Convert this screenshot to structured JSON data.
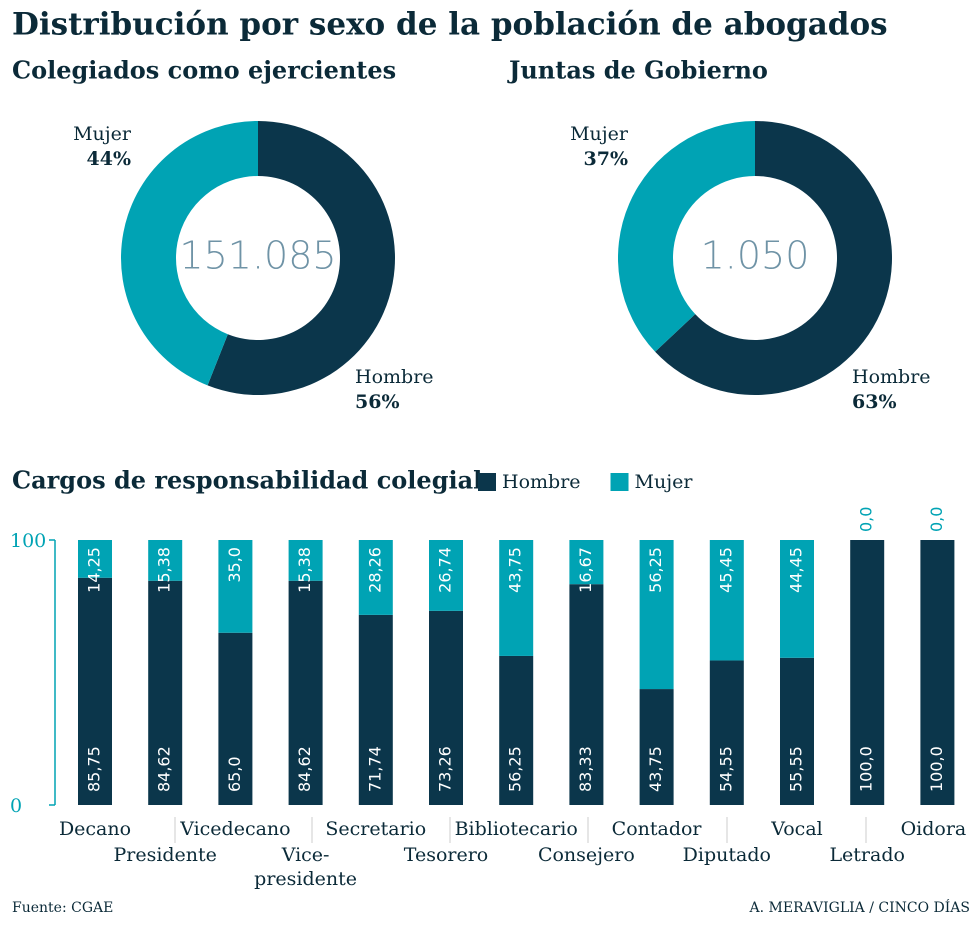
{
  "title": "Distribución por sexo de la población de abogados",
  "source": "Fuente: CGAE",
  "credit": "A. MERAVIGLIA / CINCO DÍAS",
  "chart_data": [
    {
      "type": "donut",
      "title": "Colegiados como ejercientes",
      "center_text": "151.085",
      "categories": [
        "Hombre",
        "Mujer"
      ],
      "values": [
        56,
        44
      ],
      "value_labels": [
        "56%",
        "44%"
      ],
      "colors": [
        "#0b364b",
        "#00a3b4"
      ]
    },
    {
      "type": "donut",
      "title": "Juntas de Gobierno",
      "center_text": "1.050",
      "categories": [
        "Hombre",
        "Mujer"
      ],
      "values": [
        63,
        37
      ],
      "value_labels": [
        "63%",
        "37%"
      ],
      "colors": [
        "#0b364b",
        "#00a3b4"
      ]
    },
    {
      "type": "bar",
      "stacked": true,
      "title": "Cargos de responsabilidad colegial",
      "categories": [
        "Decano",
        "Presidente",
        "Vicedecano",
        "Vice-\npresidente",
        "Secretario",
        "Tesorero",
        "Bibliotecario",
        "Consejero",
        "Contador",
        "Diputado",
        "Vocal",
        "Letrado",
        "Oidora"
      ],
      "series": [
        {
          "name": "Hombre",
          "color": "#0b364b",
          "values": [
            85.75,
            84.62,
            65.0,
            84.62,
            71.74,
            73.26,
            56.25,
            83.33,
            43.75,
            54.55,
            55.55,
            100,
            100
          ],
          "value_labels": [
            "85,75",
            "84,62",
            "65,0",
            "84,62",
            "71,74",
            "73,26",
            "56,25",
            "83,33",
            "43,75",
            "54,55",
            "55,55",
            "100,0",
            "100,0"
          ]
        },
        {
          "name": "Mujer",
          "color": "#00a3b4",
          "values": [
            14.25,
            15.38,
            35.0,
            15.38,
            28.26,
            26.74,
            43.75,
            16.67,
            56.25,
            45.45,
            44.45,
            0,
            0
          ],
          "value_labels": [
            "14,25",
            "15,38",
            "35,0",
            "15,38",
            "28,26",
            "26,74",
            "43,75",
            "16,67",
            "56,25",
            "45,45",
            "44,45",
            "0,0",
            "0,0"
          ]
        }
      ],
      "ylim": [
        0,
        100
      ],
      "yticks": [
        0,
        100
      ],
      "legend": "top"
    }
  ]
}
